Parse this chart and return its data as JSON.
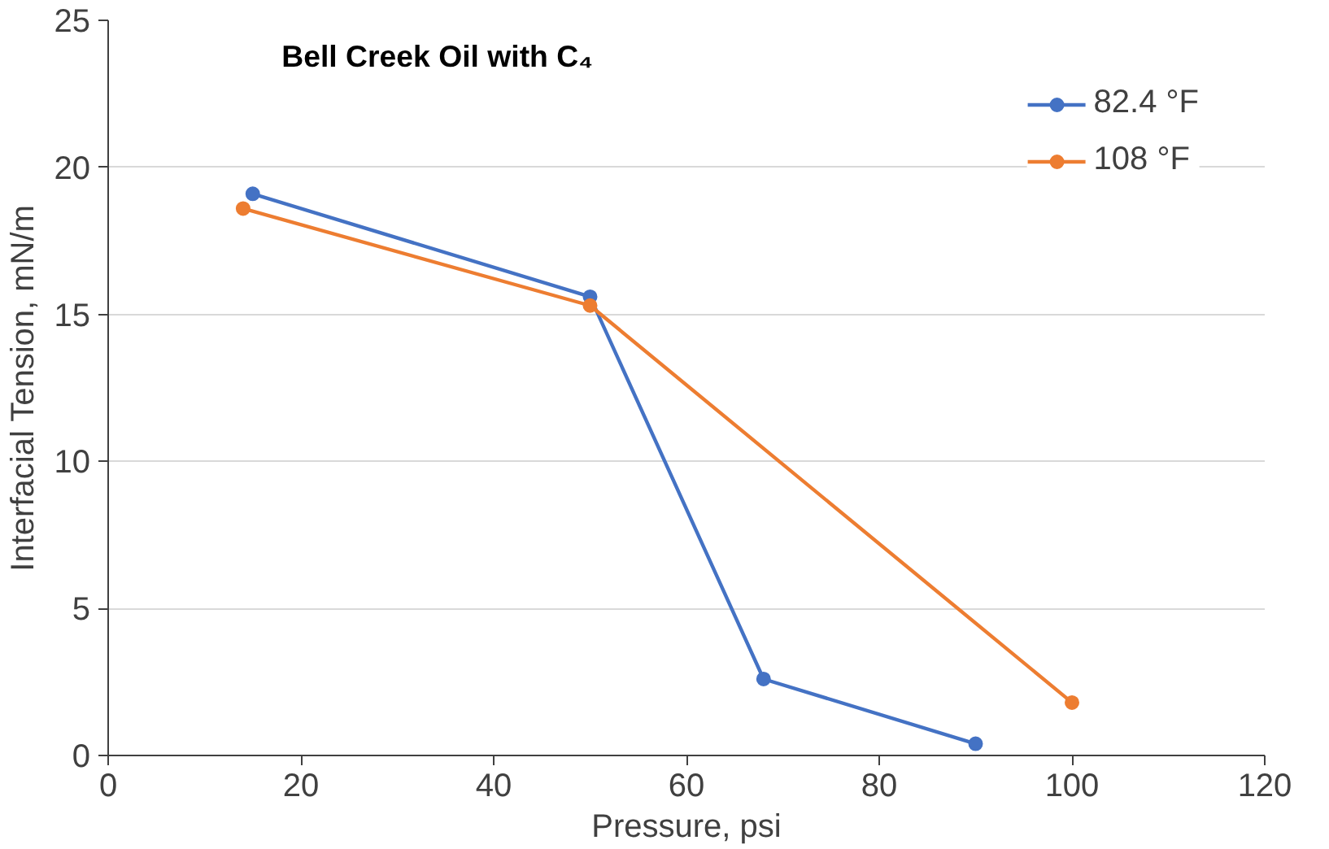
{
  "chart_data": {
    "type": "line",
    "title": "Bell Creek Oil with C₄",
    "xlabel": "Pressure, psi",
    "ylabel": "Interfacial Tension, mN/m",
    "series": [
      {
        "name": "82.4 °F",
        "color": "#4472c4",
        "x": [
          15,
          50,
          68,
          90
        ],
        "values": [
          19.1,
          15.6,
          2.6,
          0.4
        ]
      },
      {
        "name": "108 °F",
        "color": "#ed7d31",
        "x": [
          14,
          50,
          100
        ],
        "values": [
          18.6,
          15.3,
          1.8
        ]
      }
    ],
    "xlim": [
      0,
      120
    ],
    "xticks": [
      0,
      20,
      40,
      60,
      80,
      100,
      120
    ],
    "ylim": [
      0,
      25
    ],
    "yticks": [
      0,
      5,
      10,
      15,
      20,
      25
    ],
    "grid": "y",
    "legend": "top right",
    "marker": "circle",
    "line_style": "solid"
  }
}
